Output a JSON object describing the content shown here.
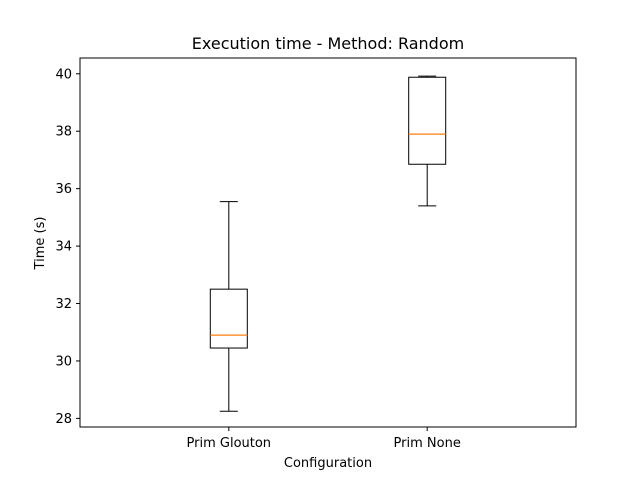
{
  "chart_data": {
    "type": "box",
    "title": "Execution time - Method: Random",
    "xlabel": "Configuration",
    "ylabel": "Time (s)",
    "ylim": [
      27.7,
      40.55
    ],
    "yticks": [
      28,
      30,
      32,
      34,
      36,
      38,
      40
    ],
    "grid": false,
    "categories": [
      " Prim Glouton",
      " Prim None"
    ],
    "boxes": [
      {
        "category": " Prim Glouton",
        "whisker_low": 28.25,
        "q1": 30.45,
        "median": 30.9,
        "q3": 32.5,
        "whisker_high": 35.55
      },
      {
        "category": " Prim None",
        "whisker_low": 35.4,
        "q1": 36.85,
        "median": 37.9,
        "q3": 39.88,
        "whisker_high": 39.92
      }
    ],
    "colors": {
      "box": "#000000",
      "median": "#ff7f0e",
      "axes": "#000000",
      "background": "#ffffff"
    }
  }
}
